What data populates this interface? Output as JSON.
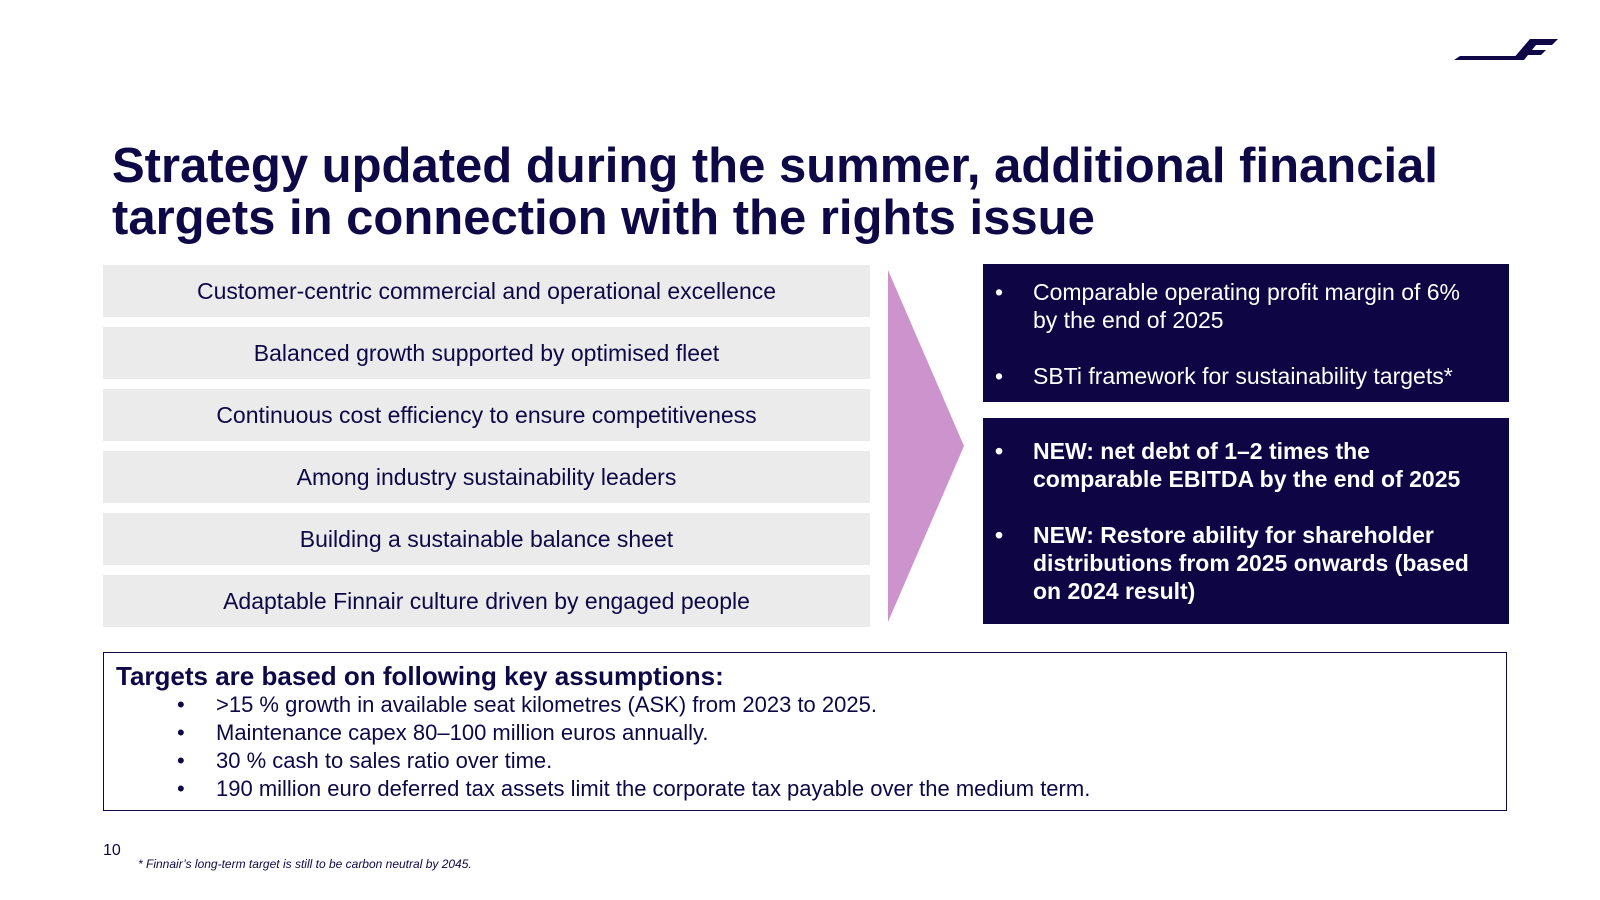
{
  "logo": {
    "icon": "finnair-logo-icon",
    "color": "#0e0846"
  },
  "title": "Strategy updated during the summer, additional financial targets in connection with the rights issue",
  "pillars": [
    "Customer-centric commercial and operational excellence",
    "Balanced growth supported by optimised fleet",
    "Continuous cost efficiency to ensure competitiveness",
    "Among industry sustainability leaders",
    "Building a sustainable balance sheet",
    "Adaptable Finnair culture driven by engaged people"
  ],
  "arrow_color": "#cc93cc",
  "targets_existing": [
    "Comparable operating profit margin of 6% by the end of 2025",
    "SBTi framework for sustainability targets*"
  ],
  "targets_new": [
    "NEW: net debt of 1–2 times the comparable EBITDA by the end of 2025",
    "NEW: Restore ability for shareholder distributions from 2025 onwards (based on 2024 result)"
  ],
  "assumptions": {
    "heading": "Targets are based on following key assumptions:",
    "items": [
      ">15 % growth in available seat kilometres (ASK) from 2023 to 2025.",
      "Maintenance capex 80–100 million euros annually.",
      "30 % cash to sales ratio over time.",
      "190 million euro deferred tax assets limit the corporate tax payable over the medium term."
    ]
  },
  "bullet": "•",
  "page_number": "10",
  "footnote": "* Finnair’s long-term target is still to be carbon neutral by 2045.",
  "colors": {
    "navy": "#0e0545",
    "pillar_bg": "#ebebeb",
    "text": "#0e0846"
  }
}
